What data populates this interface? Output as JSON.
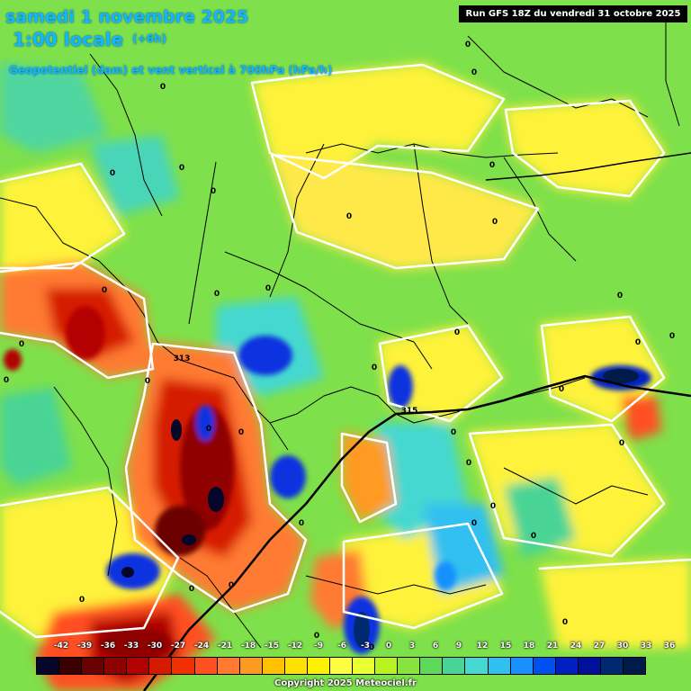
{
  "header": {
    "date_line": "samedi 1 novembre 2025",
    "time_line": "1:00 locale",
    "offset": "(+6h)",
    "subtitle": "Geopotentiel (dam) et vent vertical à 700hPa (hPa/h)",
    "run_info": "Run GFS 18Z du vendredi 31 octobre 2025"
  },
  "isolines": {
    "label_313": "313",
    "label_315": "315"
  },
  "zero_label": "0",
  "legend": {
    "ticks": [
      "-42",
      "-39",
      "-36",
      "-33",
      "-30",
      "-27",
      "-24",
      "-21",
      "-18",
      "-15",
      "-12",
      "-9",
      "-6",
      "-3",
      "0",
      "3",
      "6",
      "9",
      "12",
      "15",
      "18",
      "21",
      "24",
      "27",
      "30",
      "33",
      "36"
    ],
    "colors": [
      "#06062a",
      "#3a0000",
      "#6b0000",
      "#8f0000",
      "#b30000",
      "#d61a00",
      "#f03000",
      "#ff5020",
      "#ff7a30",
      "#ff9a20",
      "#ffc000",
      "#ffe000",
      "#fff200",
      "#ffff40",
      "#e8ff30",
      "#b8f520",
      "#86e43c",
      "#5cd85a",
      "#48d496",
      "#44d8d0",
      "#30c0f0",
      "#1890ff",
      "#0050f0",
      "#0020c0",
      "#00109a",
      "#002a70",
      "#001a4a"
    ]
  },
  "copyright": "Copyright 2025 Meteociel.fr",
  "colors": {
    "title": "#11b7ff",
    "field_neutral": "#7ee04a",
    "field_yellow": "#fff23a",
    "field_red": "#d61a00",
    "field_blue": "#1030e0"
  }
}
